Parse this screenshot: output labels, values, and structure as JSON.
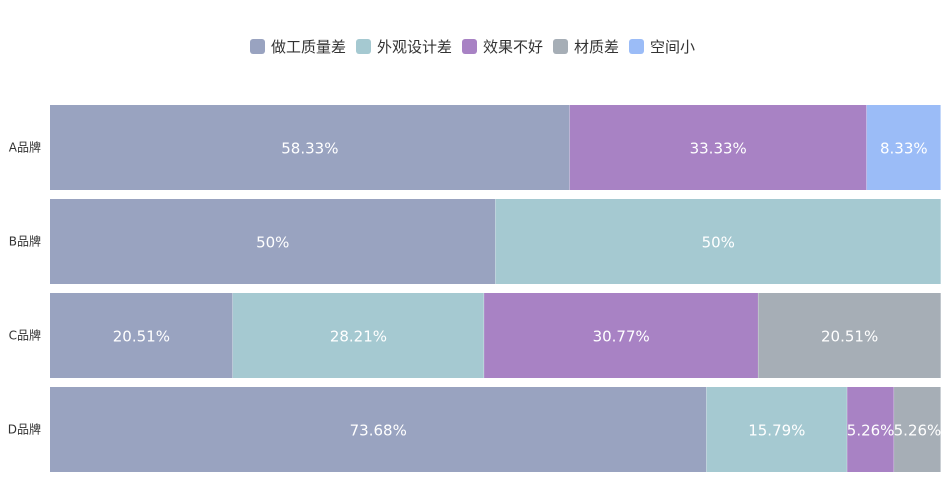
{
  "chart_data": {
    "type": "bar",
    "orientation": "horizontal",
    "stacked": true,
    "percent": true,
    "legend_position": "top-center",
    "grid": false,
    "xlim": [
      0,
      100
    ],
    "categories": [
      "A品牌",
      "B品牌",
      "C品牌",
      "D品牌"
    ],
    "series": [
      {
        "name": "做工质量差",
        "color": "#99a3c0",
        "values": [
          58.33,
          50,
          20.51,
          73.68
        ],
        "labels": [
          "58.33%",
          "50%",
          "20.51%",
          "73.68%"
        ]
      },
      {
        "name": "外观设计差",
        "color": "#a5c9d1",
        "values": [
          0,
          50,
          28.21,
          15.79
        ],
        "labels": [
          "",
          "50%",
          "28.21%",
          "15.79%"
        ]
      },
      {
        "name": "效果不好",
        "color": "#a882c4",
        "values": [
          33.33,
          0,
          30.77,
          5.26
        ],
        "labels": [
          "33.33%",
          "",
          "30.77%",
          "5.26%"
        ]
      },
      {
        "name": "材质差",
        "color": "#a6aeb6",
        "values": [
          0,
          0,
          20.51,
          5.26
        ],
        "labels": [
          "",
          "",
          "20.51%",
          "5.26%"
        ]
      },
      {
        "name": "空间小",
        "color": "#9bbcf7",
        "values": [
          8.33,
          0,
          0,
          0
        ],
        "labels": [
          "8.33%",
          "",
          "",
          ""
        ]
      }
    ]
  }
}
